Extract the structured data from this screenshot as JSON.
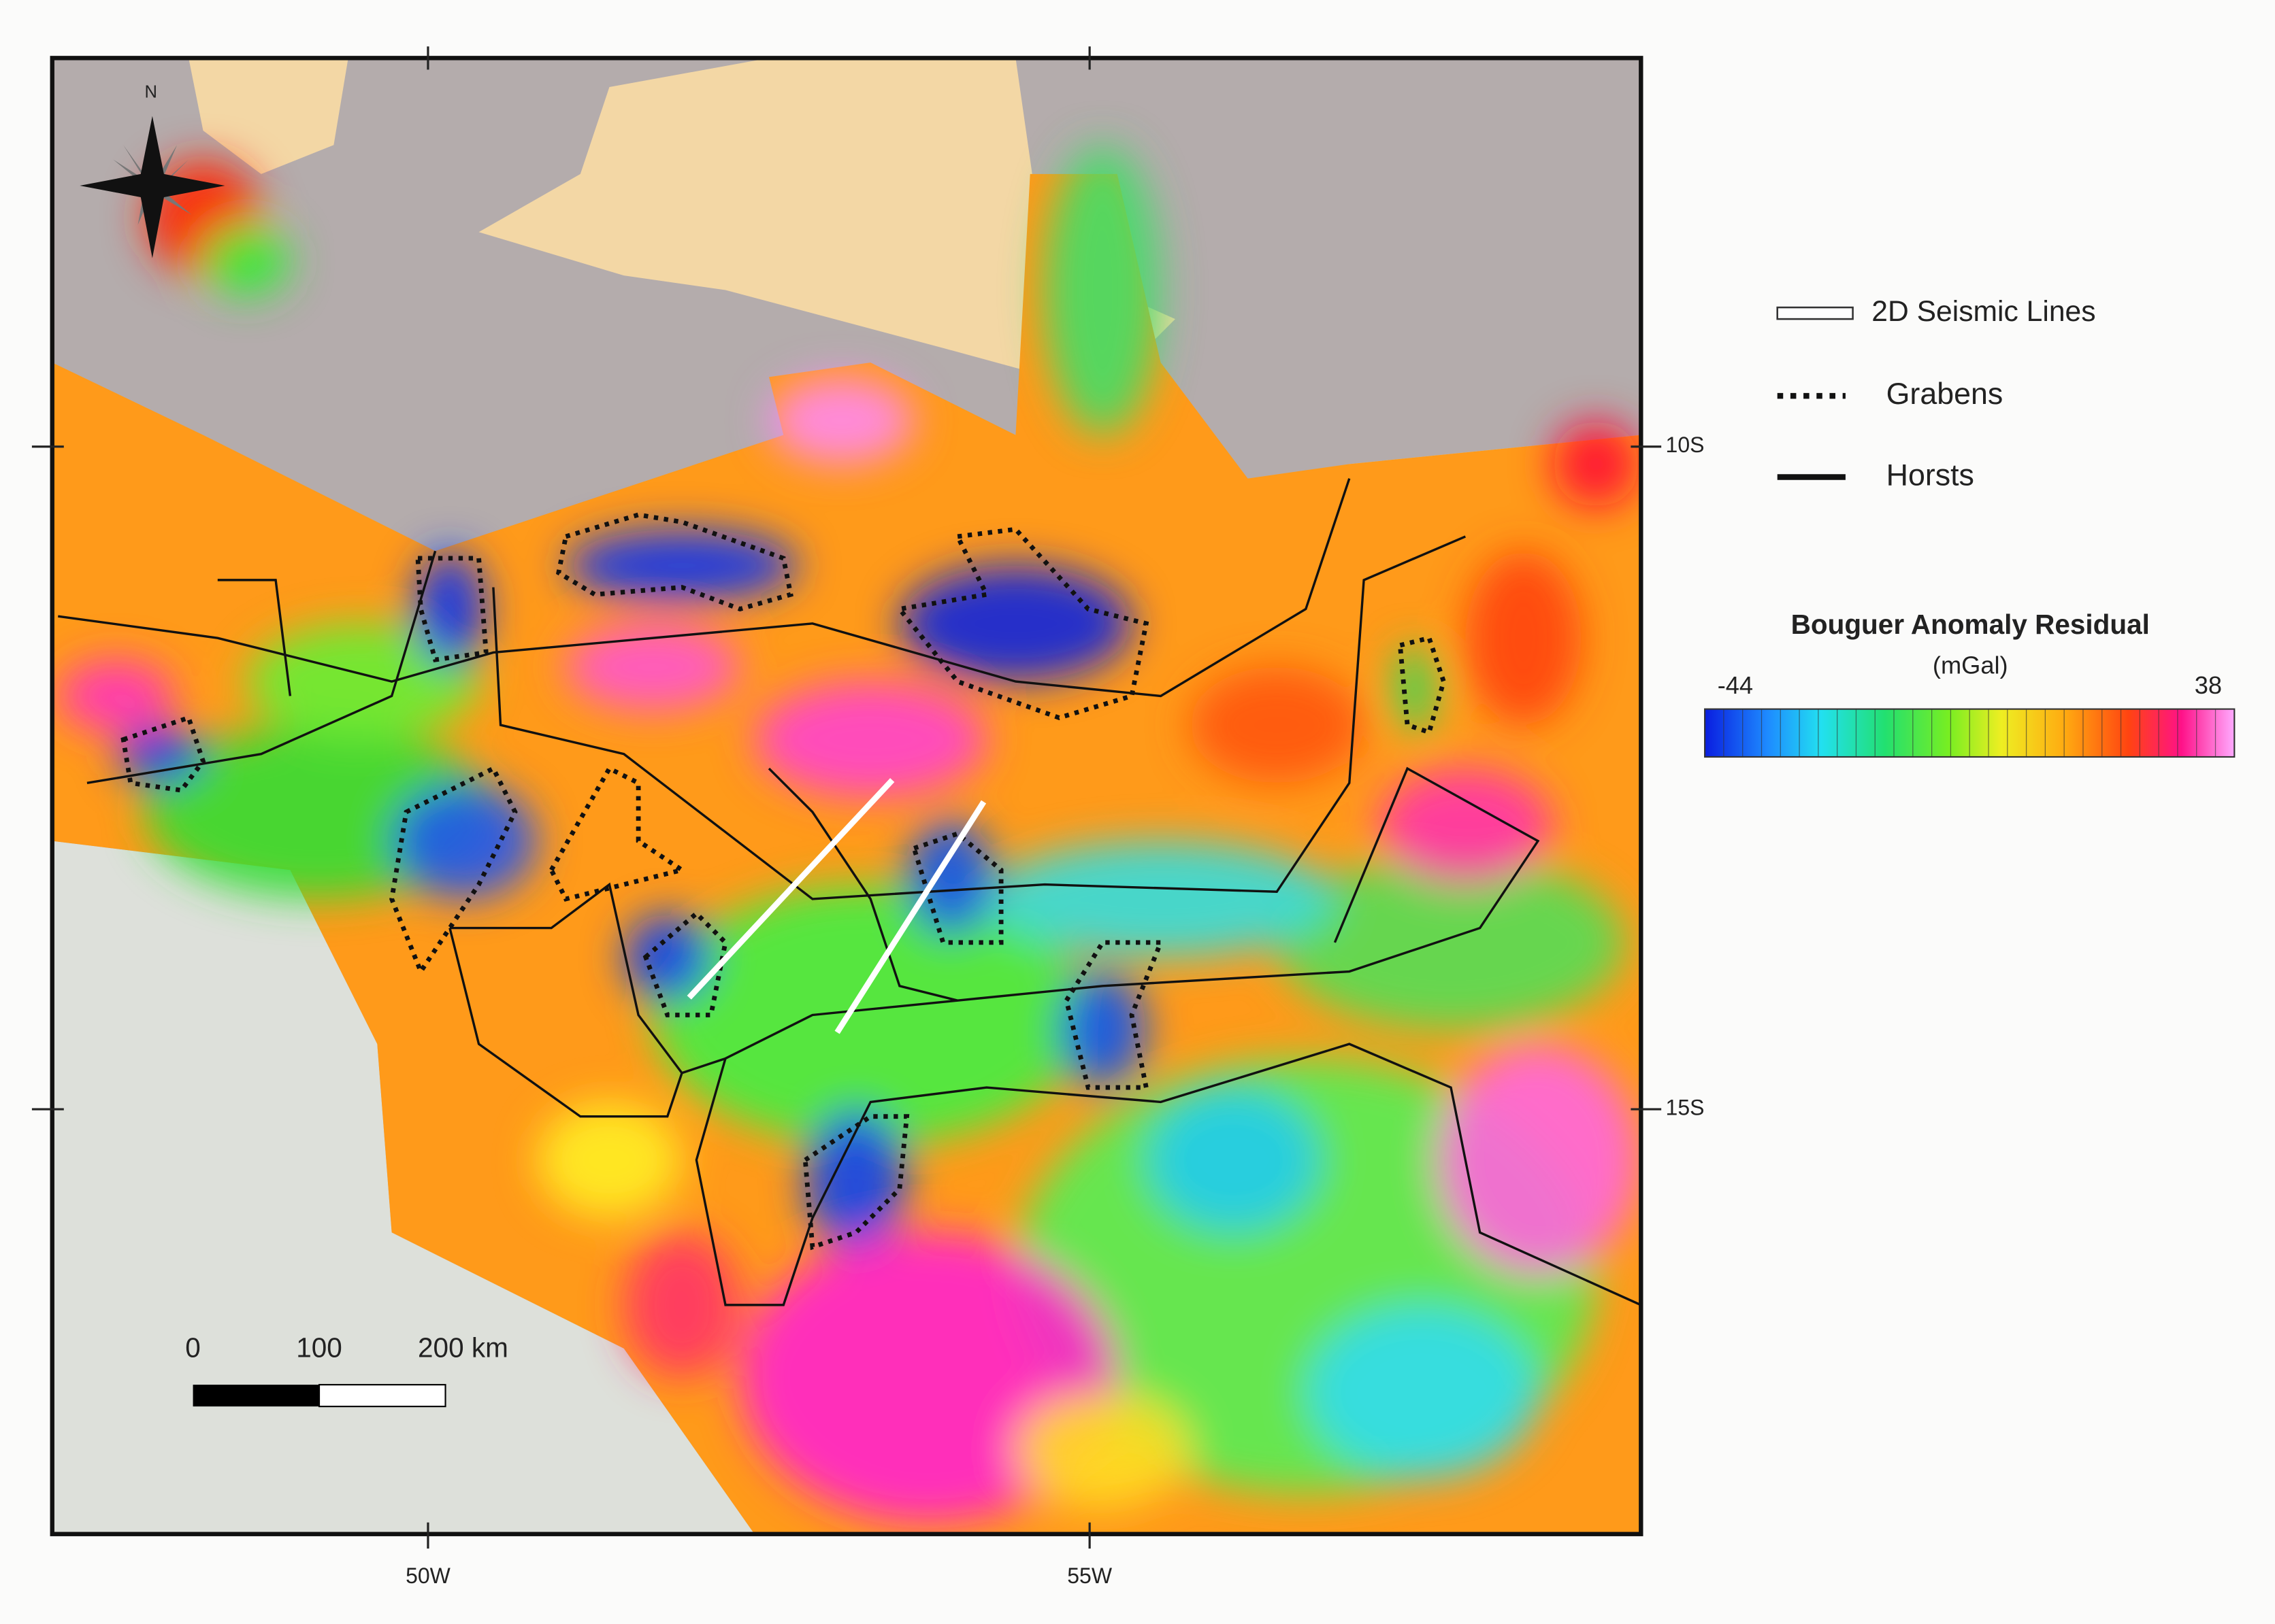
{
  "north": "N",
  "legend": {
    "seismic": "2D Seismic Lines",
    "grabens": "Grabens",
    "horsts": "Horsts"
  },
  "colorbar": {
    "title": "Bouguer Anomaly Residual",
    "unit": "(mGal)",
    "min_label": "-44",
    "max_label": "38"
  },
  "latitude_labels": [
    "10S",
    "15S"
  ],
  "longitude_labels": [
    "50W",
    "55W"
  ],
  "scale_bar": {
    "labels": [
      "0",
      "100",
      "200 km"
    ]
  }
}
